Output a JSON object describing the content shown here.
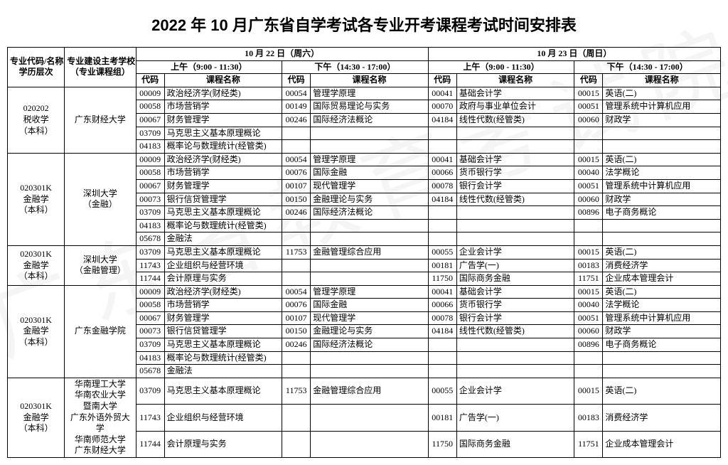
{
  "title": "2022 年 10 月广东省自学考试各专业开考课程考试时间安排表",
  "watermark": "广东省教育考试院",
  "colHeaders": {
    "majorCode": "专业代码/名称",
    "eduLevel": "学历层次",
    "school": "专业建设主考学校",
    "schoolSub": "（专业课程组）",
    "day1": "10 月 22 日（周六）",
    "day2": "10 月 23 日（周日）",
    "morning": "上午（9:00 - 11:30）",
    "afternoon": "下午（14:30 - 17:00）",
    "code": "代码",
    "courseName": "课程名称"
  },
  "majors": [
    {
      "code": "020202",
      "name": "税收学",
      "level": "（本科）",
      "school": "广东财经大学",
      "rows": [
        {
          "a": [
            "00009",
            "政治经济学(财经类)"
          ],
          "b": [
            "00054",
            "管理学原理"
          ],
          "c": [
            "00041",
            "基础会计学"
          ],
          "d": [
            "00015",
            "英语(二)"
          ]
        },
        {
          "a": [
            "00058",
            "市场营销学"
          ],
          "b": [
            "00149",
            "国际贸易理论与实务"
          ],
          "c": [
            "00070",
            "政府与事业单位会计"
          ],
          "d": [
            "00051",
            "管理系统中计算机应用"
          ]
        },
        {
          "a": [
            "00067",
            "财务管理学"
          ],
          "b": [
            "00246",
            "国际经济法概论"
          ],
          "c": [
            "04184",
            "线性代数(经管类)"
          ],
          "d": [
            "00060",
            "财政学"
          ]
        },
        {
          "a": [
            "03709",
            "马克思主义基本原理概论"
          ],
          "b": [
            "",
            ""
          ],
          "c": [
            "",
            ""
          ],
          "d": [
            "",
            ""
          ]
        },
        {
          "a": [
            "04183",
            "概率论与数理统计(经管类)"
          ],
          "b": [
            "",
            ""
          ],
          "c": [
            "",
            ""
          ],
          "d": [
            "",
            ""
          ]
        }
      ]
    },
    {
      "code": "020301K",
      "name": "金融学",
      "level": "（本科）",
      "school": "深圳大学",
      "schoolSub": "（金融）",
      "rows": [
        {
          "a": [
            "00009",
            "政治经济学(财经类)"
          ],
          "b": [
            "00054",
            "管理学原理"
          ],
          "c": [
            "00041",
            "基础会计学"
          ],
          "d": [
            "00015",
            "英语(二)"
          ]
        },
        {
          "a": [
            "00058",
            "市场营销学"
          ],
          "b": [
            "00076",
            "国际金融"
          ],
          "c": [
            "00066",
            "货币银行学"
          ],
          "d": [
            "00040",
            "法学概论"
          ]
        },
        {
          "a": [
            "00067",
            "财务管理学"
          ],
          "b": [
            "00107",
            "现代管理学"
          ],
          "c": [
            "00078",
            "银行会计学"
          ],
          "d": [
            "00051",
            "管理系统中计算机应用"
          ]
        },
        {
          "a": [
            "00073",
            "银行信贷管理学"
          ],
          "b": [
            "00150",
            "金融理论与实务"
          ],
          "c": [
            "04184",
            "线性代数(经管类)"
          ],
          "d": [
            "00060",
            "财政学"
          ]
        },
        {
          "a": [
            "03709",
            "马克思主义基本原理概论"
          ],
          "b": [
            "00246",
            "国际经济法概论"
          ],
          "c": [
            "",
            ""
          ],
          "d": [
            "00896",
            "电子商务概论"
          ]
        },
        {
          "a": [
            "04183",
            "概率论与数理统计(经管类)"
          ],
          "b": [
            "",
            ""
          ],
          "c": [
            "",
            ""
          ],
          "d": [
            "",
            ""
          ]
        },
        {
          "a": [
            "05678",
            "金融法"
          ],
          "b": [
            "",
            ""
          ],
          "c": [
            "",
            ""
          ],
          "d": [
            "",
            ""
          ]
        }
      ]
    },
    {
      "code": "020301K",
      "name": "金融学",
      "level": "（本科）",
      "school": "深圳大学",
      "schoolSub": "（金融管理）",
      "rows": [
        {
          "a": [
            "03709",
            "马克思主义基本原理概论"
          ],
          "b": [
            "11753",
            "金融管理综合应用"
          ],
          "c": [
            "00055",
            "企业会计学"
          ],
          "d": [
            "00015",
            "英语(二)"
          ]
        },
        {
          "a": [
            "11743",
            "企业组织与经营环境"
          ],
          "b": [
            "",
            ""
          ],
          "c": [
            "00181",
            "广告学(一)"
          ],
          "d": [
            "00183",
            "消费经济学"
          ]
        },
        {
          "a": [
            "11744",
            "会计原理与实务"
          ],
          "b": [
            "",
            ""
          ],
          "c": [
            "11750",
            "国际商务金融"
          ],
          "d": [
            "11751",
            "企业成本管理会计"
          ]
        }
      ]
    },
    {
      "code": "020301K",
      "name": "金融学",
      "level": "（本科）",
      "school": "广东金融学院",
      "rows": [
        {
          "a": [
            "00009",
            "政治经济学(财经类)"
          ],
          "b": [
            "00054",
            "管理学原理"
          ],
          "c": [
            "00041",
            "基础会计学"
          ],
          "d": [
            "00015",
            "英语(二)"
          ]
        },
        {
          "a": [
            "00058",
            "市场营销学"
          ],
          "b": [
            "00076",
            "国际金融"
          ],
          "c": [
            "00066",
            "货币银行学"
          ],
          "d": [
            "00040",
            "法学概论"
          ]
        },
        {
          "a": [
            "00067",
            "财务管理学"
          ],
          "b": [
            "00107",
            "现代管理学"
          ],
          "c": [
            "00078",
            "银行会计学"
          ],
          "d": [
            "00051",
            "管理系统中计算机应用"
          ]
        },
        {
          "a": [
            "00073",
            "银行信贷管理学"
          ],
          "b": [
            "00150",
            "金融理论与实务"
          ],
          "c": [
            "04184",
            "线性代数(经管类)"
          ],
          "d": [
            "00060",
            "财政学"
          ]
        },
        {
          "a": [
            "03709",
            "马克思主义基本原理概论"
          ],
          "b": [
            "00246",
            "国际经济法概论"
          ],
          "c": [
            "",
            ""
          ],
          "d": [
            "00896",
            "电子商务概论"
          ]
        },
        {
          "a": [
            "04183",
            "概率论与数理统计(经管类)"
          ],
          "b": [
            "",
            ""
          ],
          "c": [
            "",
            ""
          ],
          "d": [
            "",
            ""
          ]
        },
        {
          "a": [
            "05678",
            "金融法"
          ],
          "b": [
            "",
            ""
          ],
          "c": [
            "",
            ""
          ],
          "d": [
            "",
            ""
          ]
        }
      ]
    },
    {
      "code": "020301K",
      "name": "金融学",
      "level": "（本科）",
      "school": "华南理工大学\n华南农业大学\n暨南大学\n广东外语外贸大学\n华南师范大学\n广东财经大学",
      "rows": [
        {
          "a": [
            "03709",
            "马克思主义基本原理概论"
          ],
          "b": [
            "11753",
            "金融管理综合应用"
          ],
          "c": [
            "00055",
            "企业会计学"
          ],
          "d": [
            "00015",
            "英语(二)"
          ]
        },
        {
          "a": [
            "11743",
            "企业组织与经营环境"
          ],
          "b": [
            "",
            ""
          ],
          "c": [
            "00181",
            "广告学(一)"
          ],
          "d": [
            "00183",
            "消费经济学"
          ]
        },
        {
          "a": [
            "11744",
            "会计原理与实务"
          ],
          "b": [
            "",
            ""
          ],
          "c": [
            "11750",
            "国际商务金融"
          ],
          "d": [
            "11751",
            "企业成本管理会计"
          ]
        }
      ]
    }
  ]
}
